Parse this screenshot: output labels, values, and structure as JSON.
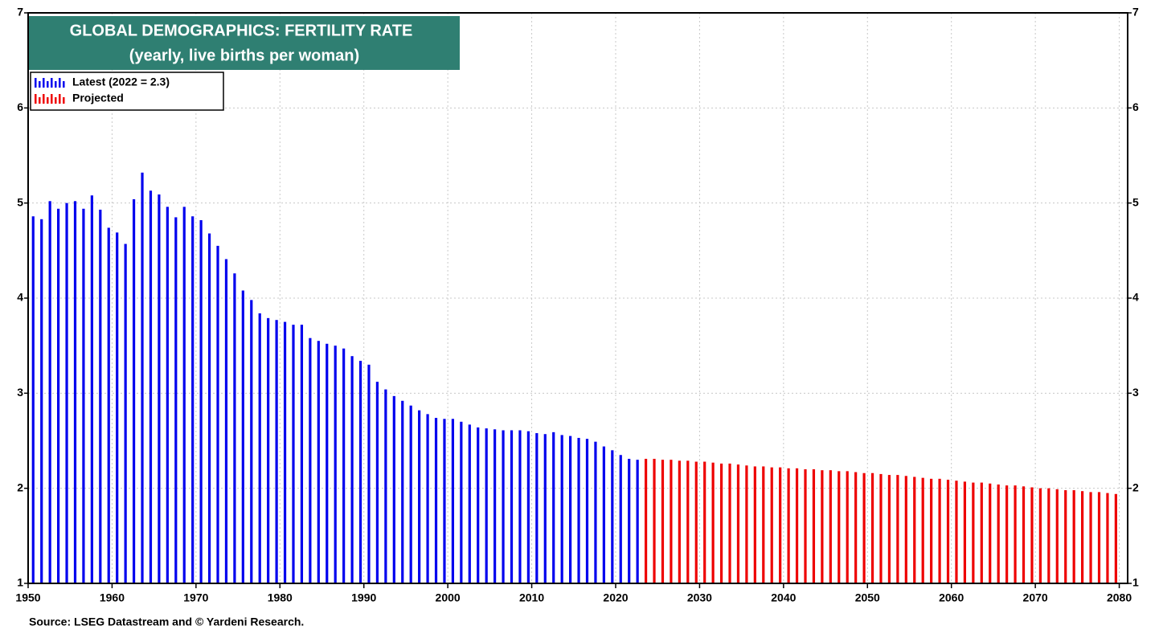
{
  "chart_data": {
    "type": "bar",
    "title": "GLOBAL DEMOGRAPHICS: FERTILITY RATE",
    "subtitle": "(yearly, live births per woman)",
    "source": "Source: LSEG Datastream and © Yardeni Research.",
    "xlim": [
      1950,
      2081
    ],
    "xticks": [
      1950,
      1960,
      1970,
      1980,
      1990,
      2000,
      2010,
      2020,
      2030,
      2040,
      2050,
      2060,
      2070,
      2080
    ],
    "ylim": [
      1,
      7
    ],
    "yticks": [
      1,
      2,
      3,
      4,
      5,
      6,
      7
    ],
    "grid": true,
    "legend": "upper left",
    "series": [
      {
        "name": "Latest (2022 = 2.3)",
        "color": "#0000ee",
        "x": [
          1950,
          1951,
          1952,
          1953,
          1954,
          1955,
          1956,
          1957,
          1958,
          1959,
          1960,
          1961,
          1962,
          1963,
          1964,
          1965,
          1966,
          1967,
          1968,
          1969,
          1970,
          1971,
          1972,
          1973,
          1974,
          1975,
          1976,
          1977,
          1978,
          1979,
          1980,
          1981,
          1982,
          1983,
          1984,
          1985,
          1986,
          1987,
          1988,
          1989,
          1990,
          1991,
          1992,
          1993,
          1994,
          1995,
          1996,
          1997,
          1998,
          1999,
          2000,
          2001,
          2002,
          2003,
          2004,
          2005,
          2006,
          2007,
          2008,
          2009,
          2010,
          2011,
          2012,
          2013,
          2014,
          2015,
          2016,
          2017,
          2018,
          2019,
          2020,
          2021,
          2022
        ],
        "values": [
          4.86,
          4.83,
          5.02,
          4.94,
          5.0,
          5.02,
          4.94,
          5.08,
          4.93,
          4.74,
          4.69,
          4.57,
          5.04,
          5.32,
          5.13,
          5.09,
          4.96,
          4.85,
          4.96,
          4.86,
          4.82,
          4.68,
          4.55,
          4.41,
          4.26,
          4.08,
          3.98,
          3.84,
          3.79,
          3.77,
          3.75,
          3.72,
          3.72,
          3.58,
          3.55,
          3.52,
          3.5,
          3.47,
          3.39,
          3.34,
          3.3,
          3.12,
          3.04,
          2.97,
          2.92,
          2.87,
          2.82,
          2.78,
          2.74,
          2.73,
          2.73,
          2.7,
          2.67,
          2.64,
          2.63,
          2.62,
          2.61,
          2.61,
          2.61,
          2.6,
          2.58,
          2.57,
          2.59,
          2.56,
          2.55,
          2.53,
          2.52,
          2.49,
          2.44,
          2.4,
          2.35,
          2.31,
          2.3
        ]
      },
      {
        "name": "Projected",
        "color": "#ee0000",
        "x": [
          2023,
          2024,
          2025,
          2026,
          2027,
          2028,
          2029,
          2030,
          2031,
          2032,
          2033,
          2034,
          2035,
          2036,
          2037,
          2038,
          2039,
          2040,
          2041,
          2042,
          2043,
          2044,
          2045,
          2046,
          2047,
          2048,
          2049,
          2050,
          2051,
          2052,
          2053,
          2054,
          2055,
          2056,
          2057,
          2058,
          2059,
          2060,
          2061,
          2062,
          2063,
          2064,
          2065,
          2066,
          2067,
          2068,
          2069,
          2070,
          2071,
          2072,
          2073,
          2074,
          2075,
          2076,
          2077,
          2078,
          2079
        ],
        "values": [
          2.31,
          2.31,
          2.3,
          2.3,
          2.29,
          2.29,
          2.28,
          2.28,
          2.27,
          2.26,
          2.26,
          2.25,
          2.24,
          2.23,
          2.23,
          2.22,
          2.22,
          2.21,
          2.21,
          2.2,
          2.2,
          2.19,
          2.19,
          2.18,
          2.18,
          2.17,
          2.16,
          2.16,
          2.15,
          2.14,
          2.14,
          2.13,
          2.12,
          2.11,
          2.1,
          2.1,
          2.09,
          2.08,
          2.07,
          2.06,
          2.06,
          2.05,
          2.04,
          2.03,
          2.03,
          2.02,
          2.01,
          2.0,
          2.0,
          1.99,
          1.98,
          1.98,
          1.97,
          1.96,
          1.96,
          1.95,
          1.94
        ]
      }
    ]
  }
}
